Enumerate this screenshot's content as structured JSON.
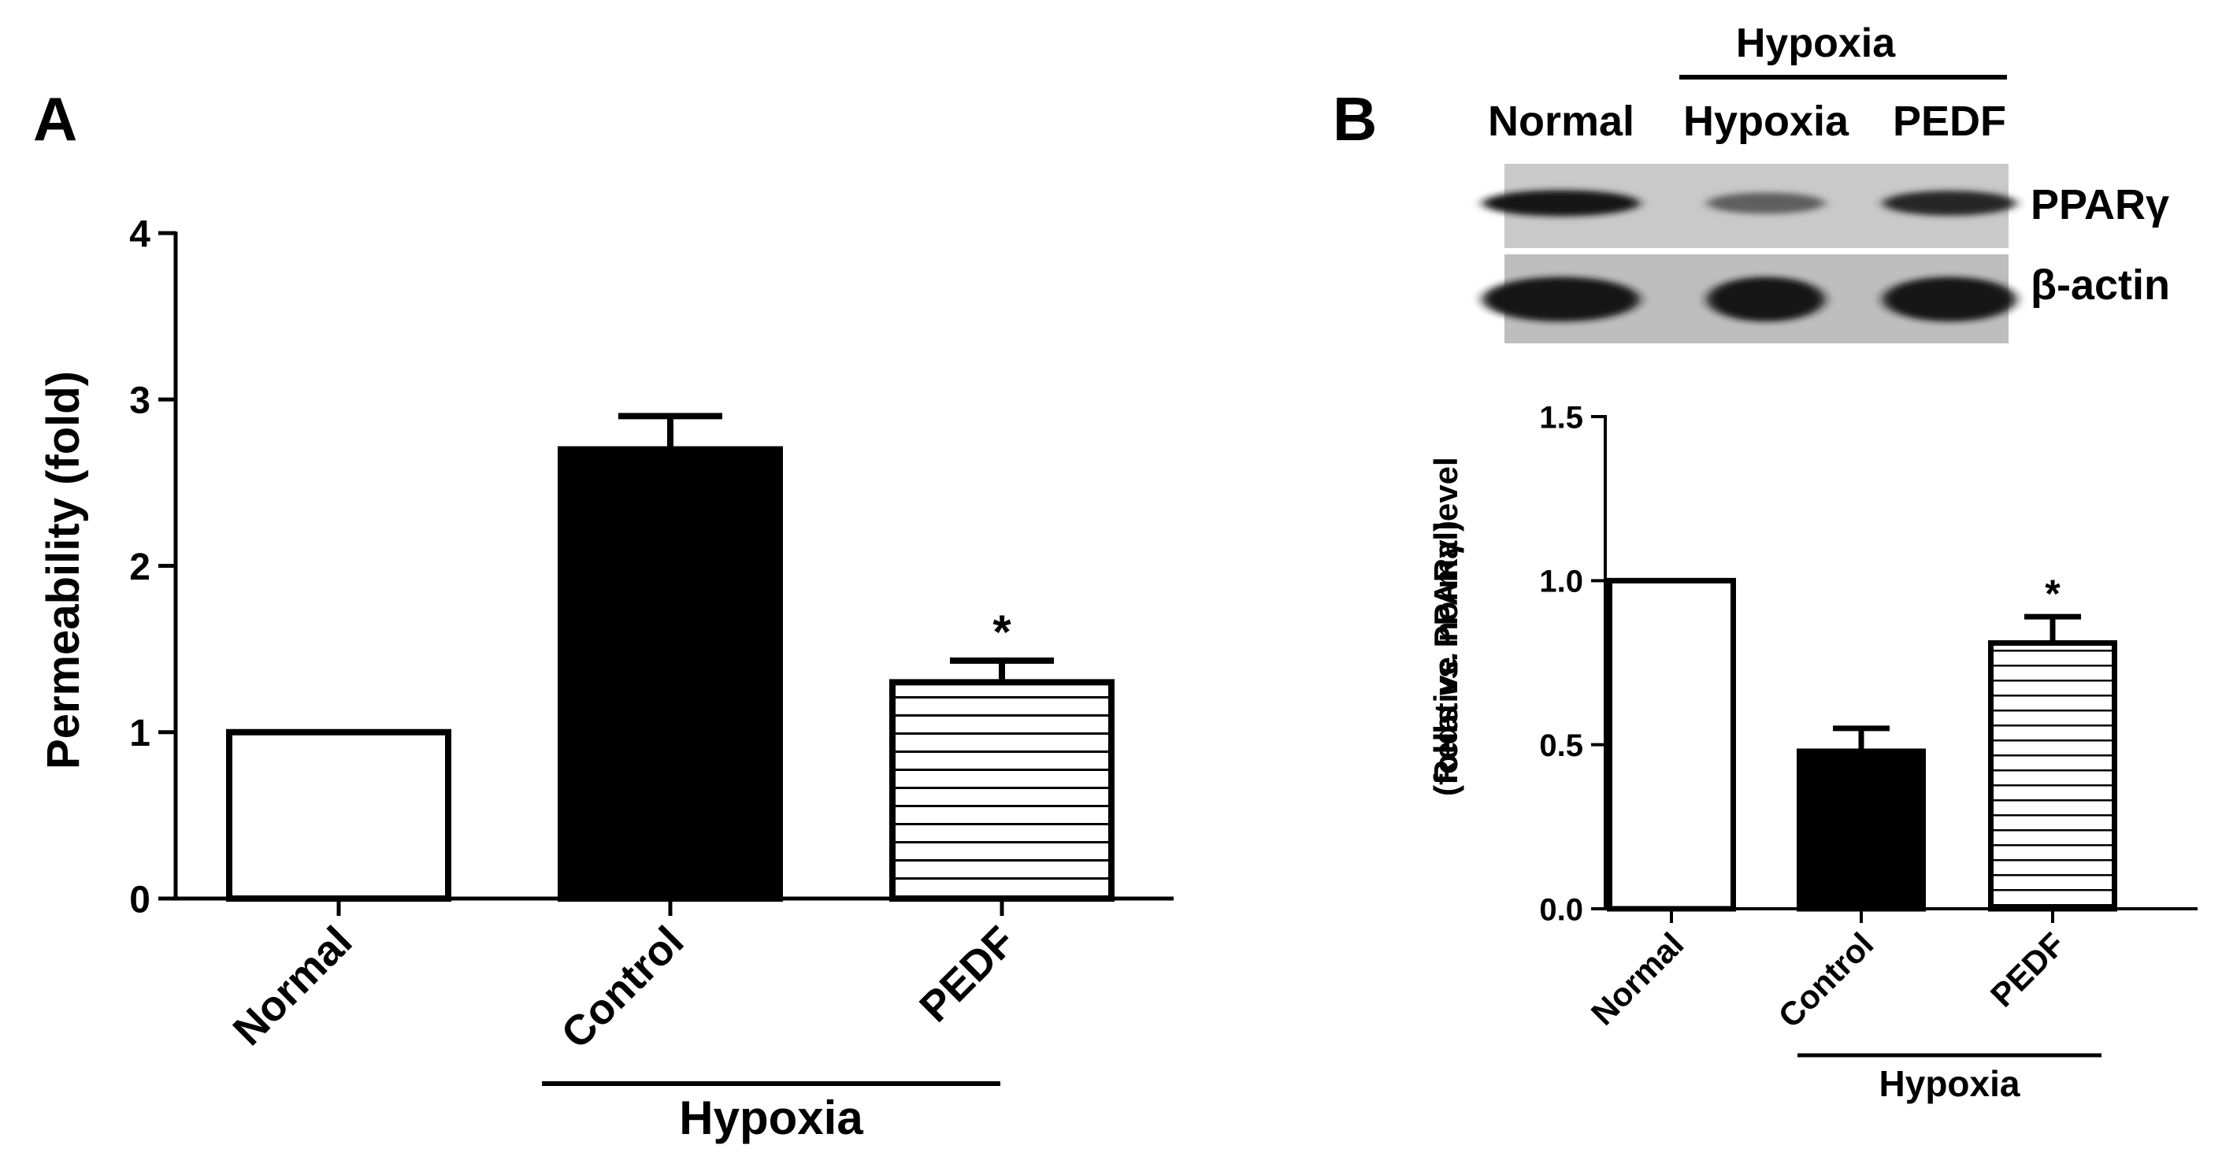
{
  "panels": {
    "a_label": "A",
    "b_label": "B"
  },
  "blot": {
    "top_group_label": "Hypoxia",
    "lane_labels": [
      "Normal",
      "Hypoxia",
      "PEDF"
    ],
    "row_labels": [
      "PPARγ",
      "β-actin"
    ],
    "band_intensity": {
      "PPARγ": [
        0.95,
        0.55,
        0.85
      ],
      "β-actin": [
        0.95,
        0.95,
        0.95
      ]
    }
  },
  "chart_data": [
    {
      "type": "bar",
      "categories": [
        "Normal",
        "Control",
        "PEDF"
      ],
      "values": [
        1.0,
        2.7,
        1.3
      ],
      "error": [
        0,
        0.2,
        0.13
      ],
      "significance": [
        "",
        "",
        "*"
      ],
      "fills": [
        "white",
        "black",
        "hlines"
      ],
      "ylabel": "Permeability (fold)",
      "ylim": [
        0,
        4
      ],
      "yticks": [
        "0",
        "1",
        "2",
        "3",
        "4"
      ],
      "group_label": "Hypoxia",
      "group_members": [
        "Control",
        "PEDF"
      ]
    },
    {
      "type": "bar",
      "categories": [
        "Normal",
        "Control",
        "PEDF"
      ],
      "values": [
        1.0,
        0.48,
        0.81
      ],
      "error": [
        0,
        0.07,
        0.08
      ],
      "significance": [
        "",
        "",
        "*"
      ],
      "fills": [
        "white",
        "black",
        "hlines"
      ],
      "ylabel_line1": "Relative PPARγ level",
      "ylabel_line2_prefix": "(folds ",
      "ylabel_line2_italic": "vs.",
      "ylabel_line2_suffix": " normal)",
      "ylim": [
        0,
        1.5
      ],
      "yticks": [
        "0.0",
        "0.5",
        "1.0",
        "1.5"
      ],
      "group_label": "Hypoxia",
      "group_members": [
        "Control",
        "PEDF"
      ]
    }
  ]
}
